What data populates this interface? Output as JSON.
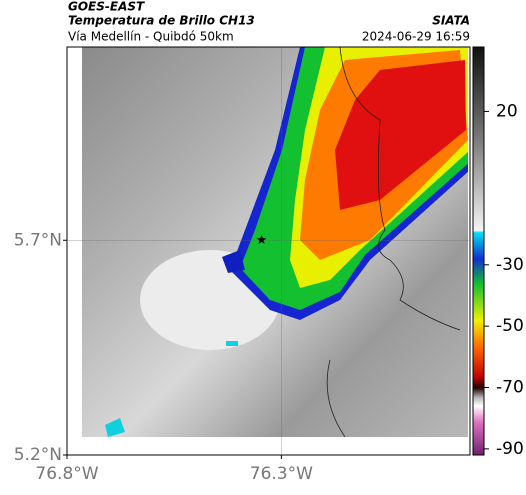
{
  "header": {
    "satellite": "GOES-EAST",
    "product": "Temperatura de Brillo CH13",
    "source": "SIATA",
    "region": "Vía Medellín - Quibdó 50km",
    "timestamp": "2024-06-29 16:59"
  },
  "map": {
    "xlim": [
      -76.8,
      -75.86
    ],
    "ylim": [
      5.2,
      6.15
    ],
    "xticks": [
      {
        "value": -76.8,
        "label": "76.8°W"
      },
      {
        "value": -76.3,
        "label": "76.3°W"
      }
    ],
    "yticks": [
      {
        "value": 5.2,
        "label": "5.2°N"
      },
      {
        "value": 5.7,
        "label": "5.7°N"
      }
    ],
    "grid": true,
    "marker": {
      "lon": -76.346,
      "lat": 5.7
    }
  },
  "colorbar": {
    "lim": [
      -92,
      41
    ],
    "ticks": [
      20,
      -30,
      -50,
      -70,
      -90
    ]
  }
}
